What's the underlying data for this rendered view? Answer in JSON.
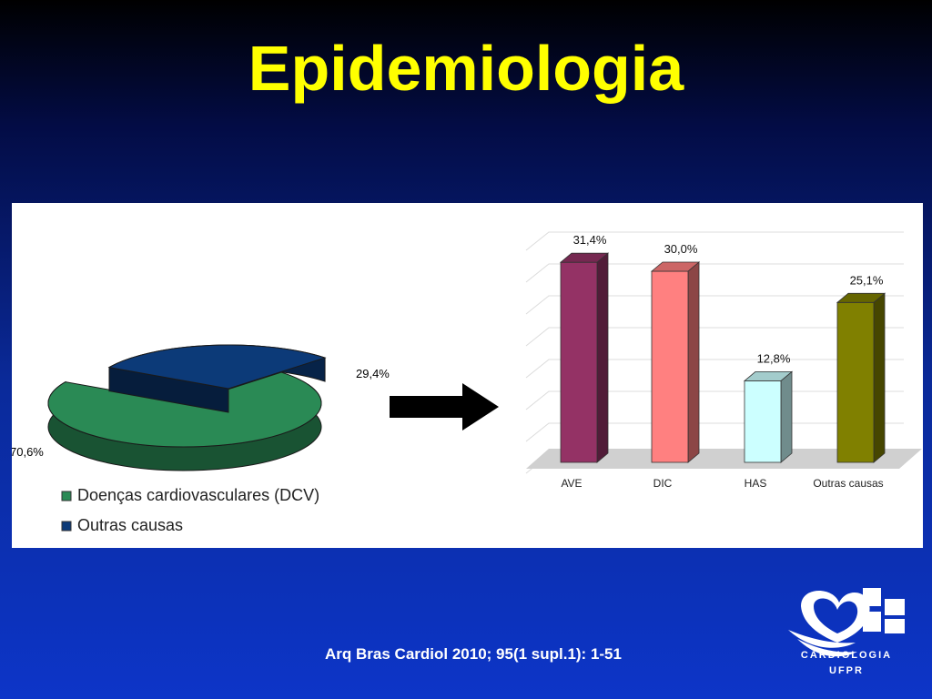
{
  "slide": {
    "title": "Epidemiologia",
    "citation": "Arq Bras Cardiol 2010; 95(1 supl.1): 1-51",
    "logo_line1": "CARDIOLOGIA",
    "logo_line2": "UFPR"
  },
  "colors": {
    "title": "#ffff00",
    "dcv": "#2a8a55",
    "outras": "#0c3a78",
    "ave": "#943265",
    "dic": "#ff8080",
    "has": "#ccffff",
    "outras_causas": "#808000"
  },
  "chart_data": [
    {
      "type": "pie",
      "slices": [
        {
          "label": "Doenças cardiovasculares (DCV)",
          "value": 70.6,
          "value_label": "70,6%",
          "color": "#2a8a55"
        },
        {
          "label": "Outras causas",
          "value": 29.4,
          "value_label": "29,4%",
          "color": "#0c3a78"
        }
      ],
      "legend": [
        "Doenças cardiovasculares (DCV)",
        "Outras causas"
      ],
      "legend_position": "bottom-left"
    },
    {
      "type": "bar",
      "categories": [
        "AVE",
        "DIC",
        "HAS",
        "Outras causas"
      ],
      "values": [
        31.4,
        30.0,
        12.8,
        25.1
      ],
      "value_labels": [
        "31,4%",
        "30,0%",
        "12,8%",
        "25,1%"
      ],
      "colors": [
        "#943265",
        "#ff8080",
        "#ccffff",
        "#808000"
      ],
      "ylim": [
        0,
        35
      ],
      "grid": true
    }
  ]
}
